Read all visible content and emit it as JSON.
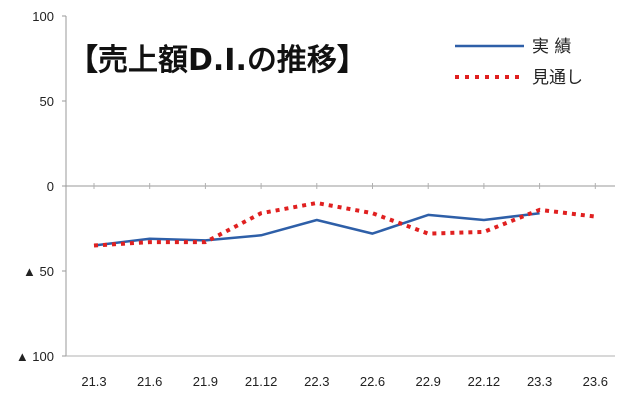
{
  "chart_data": {
    "type": "line",
    "title": "【売上額D.I.の推移】",
    "categories": [
      "21.3",
      "21.6",
      "21.9",
      "21.12",
      "22.3",
      "22.6",
      "22.9",
      "22.12",
      "23.3",
      "23.6"
    ],
    "y_ticks": [
      "100",
      "50",
      "0",
      "▲ 50",
      "▲ 100"
    ],
    "ylim": [
      -100,
      100
    ],
    "grid": false,
    "legend_position": "top-right",
    "series": [
      {
        "name": "実 績",
        "style": "solid",
        "color": "#2e5fa8",
        "values": [
          -35,
          -31,
          -32,
          -29,
          -20,
          -28,
          -17,
          -20,
          -16,
          null
        ]
      },
      {
        "name": "見通し",
        "style": "dotted",
        "color": "#e02020",
        "values": [
          -35,
          -33,
          -33,
          -16,
          -10,
          -16,
          -28,
          -27,
          -14,
          -18
        ]
      }
    ]
  }
}
